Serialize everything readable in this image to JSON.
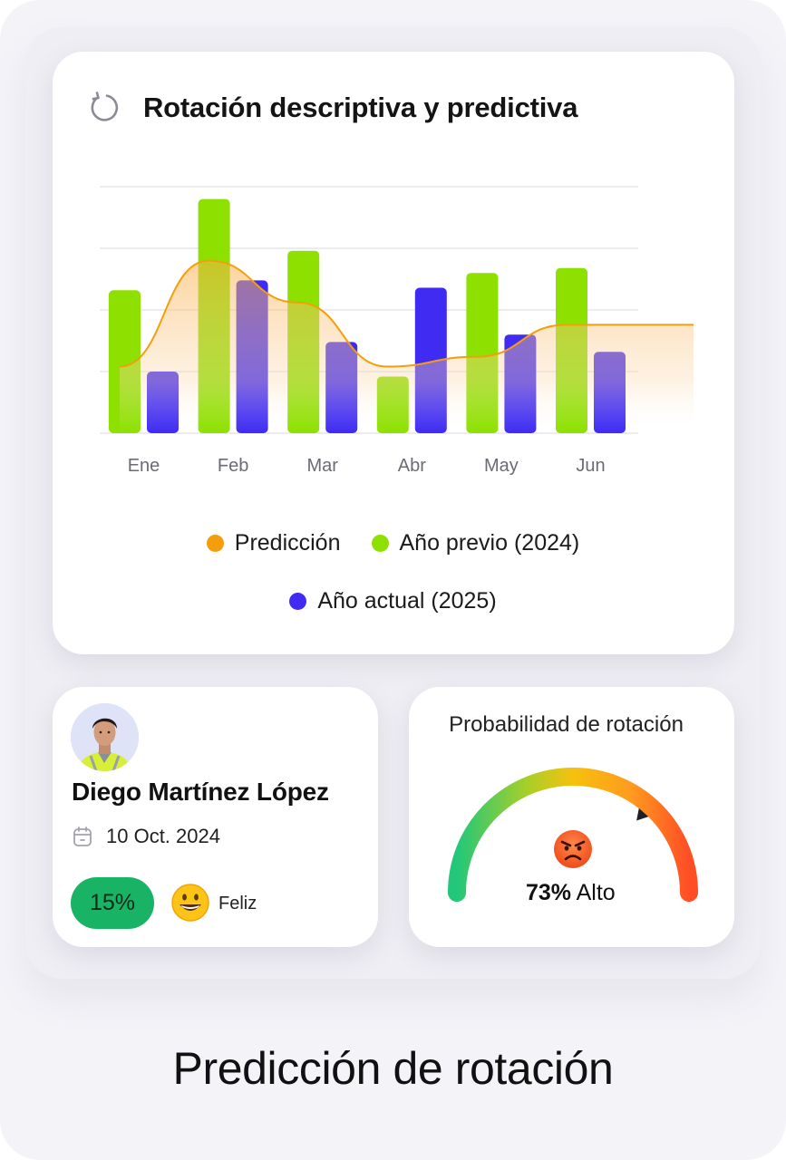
{
  "chart_card": {
    "title": "Rotación descriptiva y predictiva",
    "icon": "refresh-icon"
  },
  "chart_data": {
    "type": "bar",
    "title": "Rotación descriptiva y predictiva",
    "categories": [
      "Ene",
      "Feb",
      "Mar",
      "Abr",
      "May",
      "Jun"
    ],
    "ylim": [
      0,
      100
    ],
    "grid": true,
    "legend_position": "bottom",
    "series": [
      {
        "name": "Año previo (2024)",
        "kind": "bar",
        "color": "#8ee000",
        "values": [
          58,
          95,
          74,
          23,
          65,
          67
        ]
      },
      {
        "name": "Año actual (2025)",
        "kind": "bar",
        "color": "#3f2bf2",
        "values": [
          25,
          62,
          37,
          59,
          40,
          33
        ]
      },
      {
        "name": "Predicción",
        "kind": "area",
        "color": "#f59e0b",
        "values": [
          27,
          70,
          53,
          27,
          31,
          44
        ]
      }
    ]
  },
  "legend": [
    {
      "label": "Predicción",
      "color": "#f59e0b"
    },
    {
      "label": "Año previo (2024)",
      "color": "#8ee000"
    },
    {
      "label": "Año actual (2025)",
      "color": "#3f2bf2"
    }
  ],
  "employee": {
    "name": "Diego Martínez López",
    "date": "10 Oct. 2024",
    "percent": "15%",
    "mood": "Feliz",
    "mood_icon": "happy-face-icon",
    "avatar": "avatar-icon"
  },
  "probability": {
    "title": "Probabilidad de rotación",
    "value": "73%",
    "level": "Alto",
    "fraction": 0.73,
    "icon": "angry-face-icon"
  },
  "footer": {
    "title": "Predicción de rotación"
  }
}
